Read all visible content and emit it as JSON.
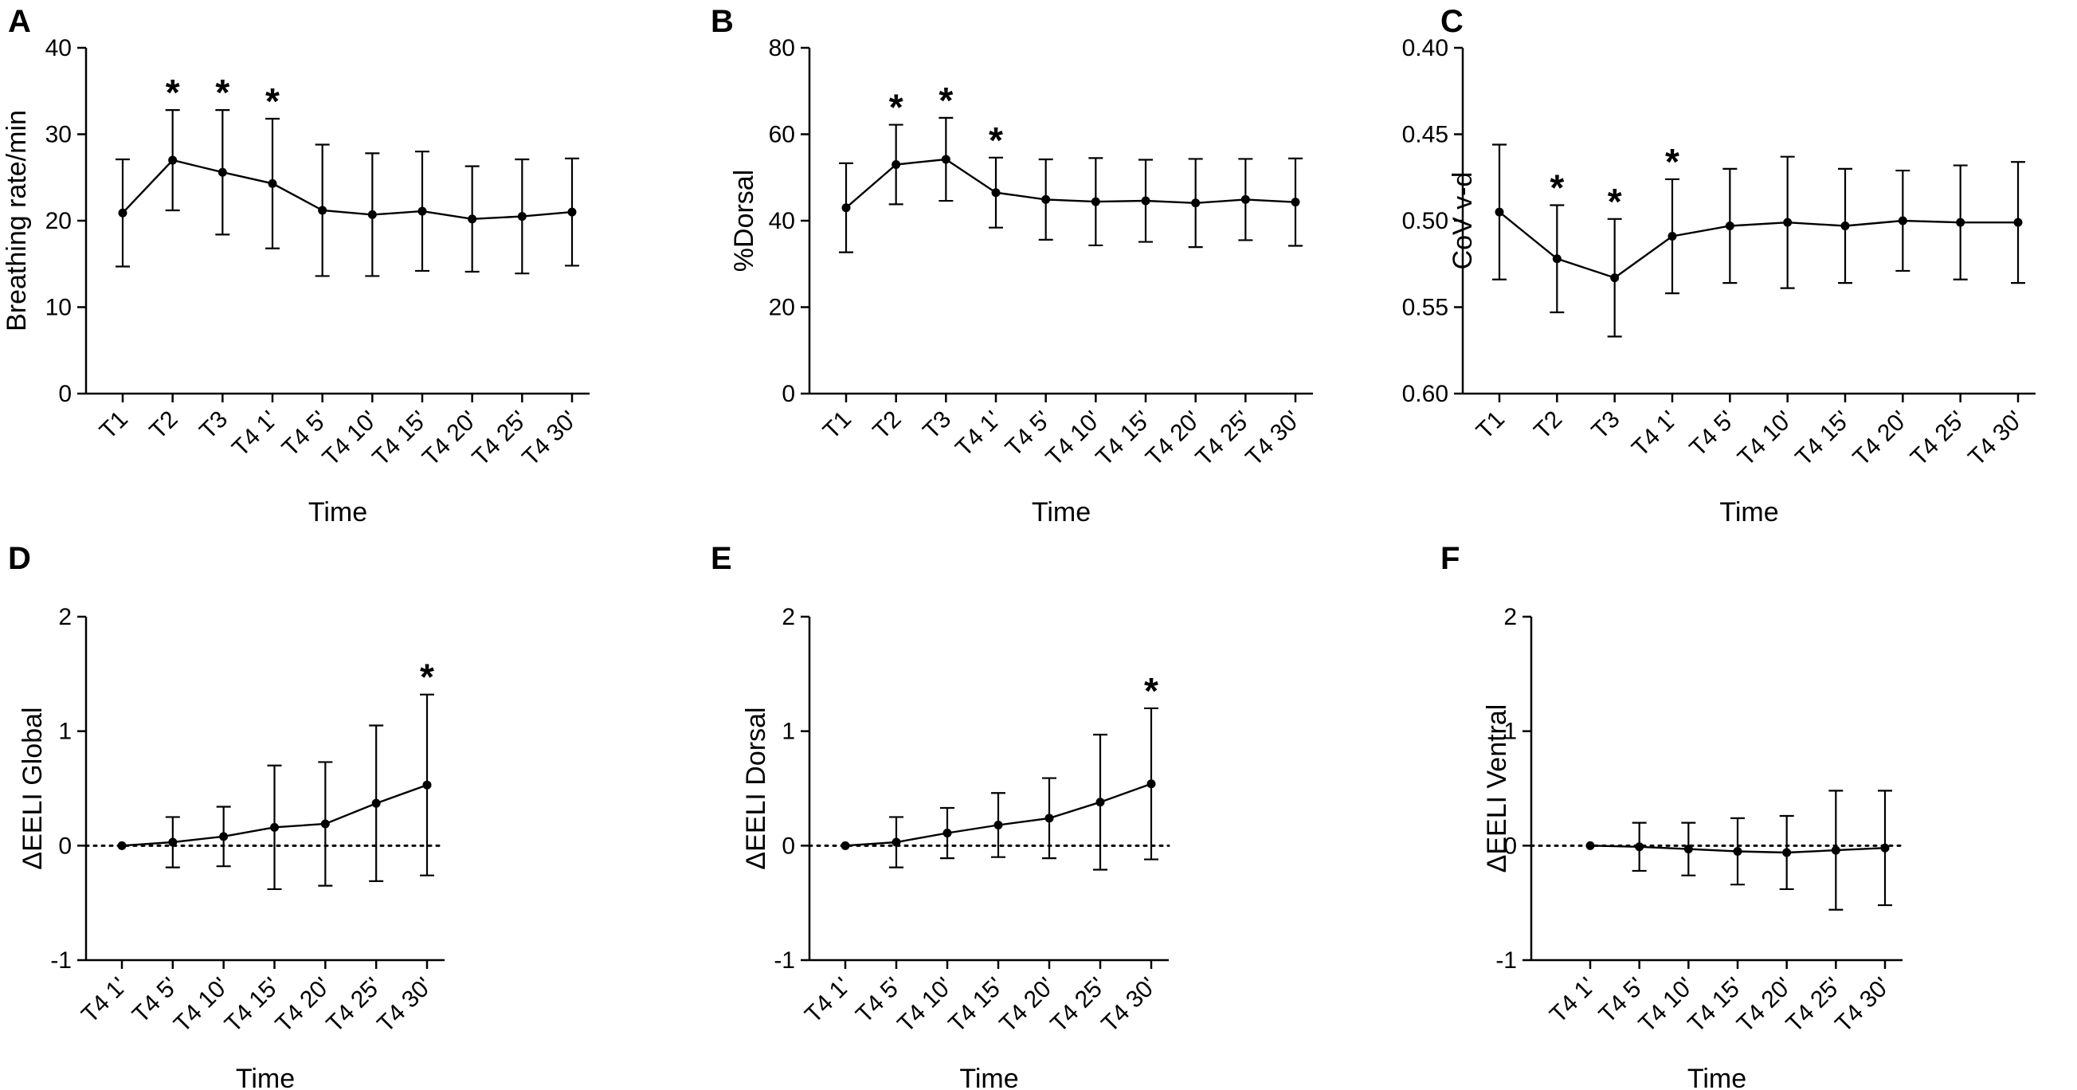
{
  "chart_data": [
    {
      "id": "A",
      "type": "line",
      "panel_letter": "A",
      "title": "",
      "xlabel": "Time",
      "ylabel": "Breathing rate/min",
      "categories": [
        "T1",
        "T2",
        "T3",
        "T4 1'",
        "T4 5'",
        "T4 10'",
        "T4 15'",
        "T4 20'",
        "T4 25'",
        "T4 30'"
      ],
      "values": [
        20.9,
        27.0,
        25.6,
        24.3,
        21.2,
        20.7,
        21.1,
        20.2,
        20.5,
        21.0
      ],
      "error": [
        6.2,
        5.8,
        7.2,
        7.5,
        7.6,
        7.1,
        6.9,
        6.1,
        6.6,
        6.2
      ],
      "ylim": [
        0,
        40
      ],
      "yticks": [
        0,
        10,
        20,
        30,
        40
      ],
      "ytick_labels": [
        "0",
        "10",
        "20",
        "30",
        "40"
      ],
      "y_inverted": false,
      "reference_line": null,
      "significant": [
        1,
        2,
        3
      ],
      "marker": "*"
    },
    {
      "id": "B",
      "type": "line",
      "panel_letter": "B",
      "title": "",
      "xlabel": "Time",
      "ylabel": "%Dorsal",
      "categories": [
        "T1",
        "T2",
        "T3",
        "T4 1'",
        "T4 5'",
        "T4 10'",
        "T4 15'",
        "T4 20'",
        "T4 25'",
        "T4 30'"
      ],
      "values": [
        43.0,
        53.0,
        54.2,
        46.5,
        44.9,
        44.4,
        44.6,
        44.1,
        44.9,
        44.3
      ],
      "error": [
        10.3,
        9.2,
        9.6,
        8.1,
        9.3,
        10.1,
        9.5,
        10.2,
        9.4,
        10.1
      ],
      "ylim": [
        0,
        80
      ],
      "yticks": [
        0,
        20,
        40,
        60,
        80
      ],
      "ytick_labels": [
        "0",
        "20",
        "40",
        "60",
        "80"
      ],
      "y_inverted": false,
      "reference_line": null,
      "significant": [
        1,
        2,
        3
      ],
      "marker": "*"
    },
    {
      "id": "C",
      "type": "line",
      "panel_letter": "C",
      "title": "",
      "xlabel": "Time",
      "ylabel": "CoV v-d",
      "categories": [
        "T1",
        "T2",
        "T3",
        "T4 1'",
        "T4 5'",
        "T4 10'",
        "T4 15'",
        "T4 20'",
        "T4 25'",
        "T4 30'"
      ],
      "values": [
        0.495,
        0.522,
        0.533,
        0.509,
        0.503,
        0.501,
        0.503,
        0.5,
        0.501,
        0.501
      ],
      "error": [
        0.039,
        0.031,
        0.034,
        0.033,
        0.033,
        0.038,
        0.033,
        0.029,
        0.033,
        0.035
      ],
      "ylim": [
        0.4,
        0.6
      ],
      "yticks": [
        0.4,
        0.45,
        0.5,
        0.55,
        0.6
      ],
      "ytick_labels": [
        "0.40",
        "0.45",
        "0.50",
        "0.55",
        "0.60"
      ],
      "y_inverted": true,
      "reference_line": null,
      "significant": [
        1,
        2,
        3
      ],
      "marker": "*"
    },
    {
      "id": "D",
      "type": "line",
      "panel_letter": "D",
      "title": "",
      "xlabel": "Time",
      "ylabel": "ΔEELI Global",
      "categories": [
        "T4 1'",
        "T4 5'",
        "T4 10'",
        "T4 15'",
        "T4 20'",
        "T4 25'",
        "T4 30'"
      ],
      "values": [
        0.0,
        0.03,
        0.08,
        0.16,
        0.19,
        0.37,
        0.53
      ],
      "error": [
        0.0,
        0.22,
        0.26,
        0.54,
        0.54,
        0.68,
        0.79
      ],
      "ylim": [
        -1,
        2
      ],
      "yticks": [
        -1,
        0,
        1,
        2
      ],
      "ytick_labels": [
        "-1",
        "0",
        "1",
        "2"
      ],
      "y_inverted": false,
      "reference_line": 0,
      "significant": [
        6
      ],
      "marker": "*"
    },
    {
      "id": "E",
      "type": "line",
      "panel_letter": "E",
      "title": "",
      "xlabel": "Time",
      "ylabel": "ΔEELI Dorsal",
      "categories": [
        "T4 1'",
        "T4 5'",
        "T4 10'",
        "T4 15'",
        "T4 20'",
        "T4 25'",
        "T4 30'"
      ],
      "values": [
        0.0,
        0.03,
        0.11,
        0.18,
        0.24,
        0.38,
        0.54
      ],
      "error": [
        0.0,
        0.22,
        0.22,
        0.28,
        0.35,
        0.59,
        0.66
      ],
      "ylim": [
        -1,
        2
      ],
      "yticks": [
        -1,
        0,
        1,
        2
      ],
      "ytick_labels": [
        "-1",
        "0",
        "1",
        "2"
      ],
      "y_inverted": false,
      "reference_line": 0,
      "significant": [
        6
      ],
      "marker": "*"
    },
    {
      "id": "F",
      "type": "line",
      "panel_letter": "F",
      "title": "",
      "xlabel": "Time",
      "ylabel": "ΔEELI Ventral",
      "categories": [
        "T4 1'",
        "T4 5'",
        "T4 10'",
        "T4 15'",
        "T4 20'",
        "T4 25'",
        "T4 30'"
      ],
      "values": [
        0.0,
        -0.01,
        -0.03,
        -0.05,
        -0.06,
        -0.04,
        -0.02
      ],
      "error": [
        0.0,
        0.21,
        0.23,
        0.29,
        0.32,
        0.52,
        0.5
      ],
      "ylim": [
        -1,
        2
      ],
      "yticks": [
        -1,
        0,
        1,
        2
      ],
      "ytick_labels": [
        "-1",
        "0",
        "1",
        "2"
      ],
      "y_inverted": false,
      "reference_line": 0,
      "significant": [],
      "marker": "*"
    }
  ]
}
